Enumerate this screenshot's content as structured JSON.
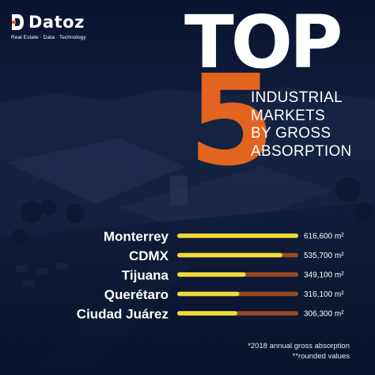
{
  "brand": {
    "name": "Datoz",
    "tagline": "Real Estate · Data · Technology",
    "logo_icon": "datoz-d-icon"
  },
  "headline": {
    "top": "TOP",
    "number": "5",
    "lines": [
      "INDUSTRIAL",
      "MARKETS",
      "BY GROSS",
      "ABSORPTION"
    ]
  },
  "chart_data": {
    "type": "bar",
    "orientation": "horizontal",
    "categories": [
      "Monterrey",
      "CDMX",
      "Tijuana",
      "Querétaro",
      "Ciudad Juárez"
    ],
    "values": [
      616600,
      535700,
      349100,
      316100,
      306300
    ],
    "value_labels": [
      "616,600 m²",
      "535,700 m²",
      "349,100 m²",
      "316,100 m²",
      "306,300 m²"
    ],
    "unit": "m²",
    "xlim": [
      0,
      616600
    ],
    "grid": false,
    "legend": "none"
  },
  "colors": {
    "background": "#0d1833",
    "accent_orange": "#e3641e",
    "bar_yellow": "#f2dc3a",
    "bar_track": "#9a4a1e",
    "text": "#ffffff"
  },
  "footnotes": [
    "*2018 annual gross absorption",
    "**rounded values"
  ]
}
